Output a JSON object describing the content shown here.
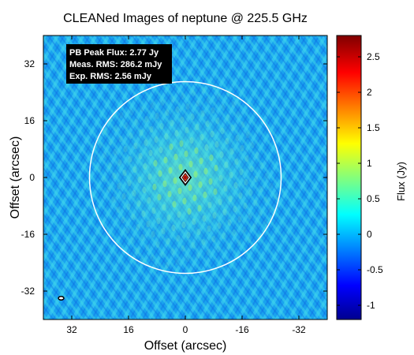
{
  "chart_data": {
    "type": "heatmap",
    "title": "CLEANed Images of neptune @ 225.5 GHz",
    "xlabel": "Offset (arcsec)",
    "ylabel": "Offset (arcsec)",
    "colorbar_label": "Flux (Jy)",
    "xlim": [
      40,
      -40
    ],
    "ylim": [
      -40,
      40
    ],
    "x_ticks": [
      32,
      16,
      0,
      -16,
      -32
    ],
    "x_tick_labels": [
      "32",
      "16",
      "0",
      "-16",
      "-32"
    ],
    "y_ticks": [
      32,
      16,
      0,
      -16,
      -32
    ],
    "y_tick_labels": [
      "32",
      "16",
      "0",
      "-16",
      "-32"
    ],
    "colorbar_range": [
      -1.2,
      2.8
    ],
    "colorbar_ticks": [
      2.5,
      2,
      1.5,
      1,
      0.5,
      0,
      -0.5,
      -1
    ],
    "colorbar_tick_labels": [
      "2.5",
      "2",
      "1.5",
      "1",
      "0.5",
      "0",
      "-0.5",
      "-1"
    ],
    "colormap": [
      "#00008f",
      "#0000ff",
      "#00ffff",
      "#ffff00",
      "#ff0000",
      "#800000"
    ],
    "primary_beam_circle": {
      "center": [
        0,
        0
      ],
      "radius": 27
    },
    "source_peak": {
      "x": 0,
      "y": 0,
      "flux_jy": 2.77
    },
    "synthesized_beam_marker": {
      "x": 35,
      "y": -34
    },
    "annotation": [
      "PB Peak Flux: 2.77 Jy",
      "Meas. RMS: 286.2 mJy",
      "Exp. RMS: 2.56 mJy"
    ]
  }
}
